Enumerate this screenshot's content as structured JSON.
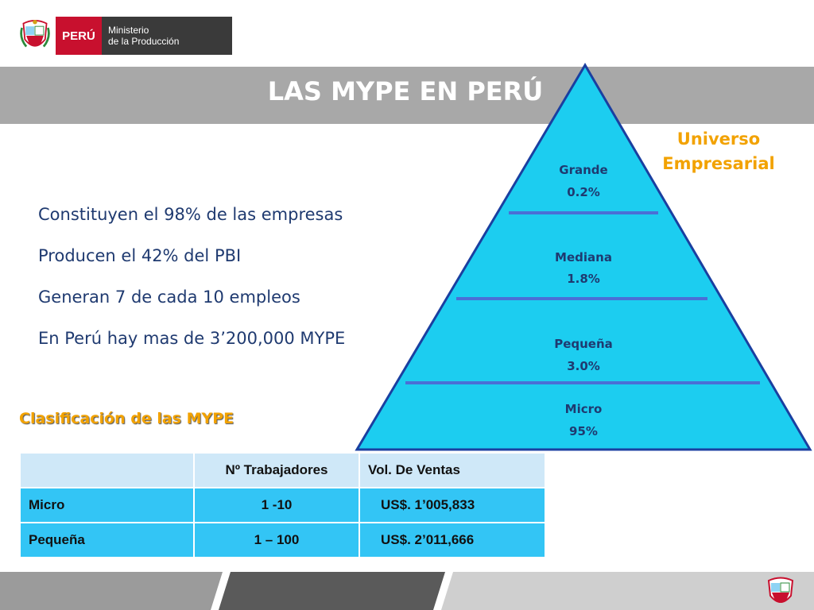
{
  "header": {
    "logo_country": "PERÚ",
    "logo_ministry_line1": "Ministerio",
    "logo_ministry_line2": "de la Producción",
    "title": "LAS MYPE EN  PERÚ"
  },
  "pyramid": {
    "side_label_line1": "Universo",
    "side_label_line2": "Empresarial",
    "tiers": [
      {
        "name": "Grande",
        "pct": "0.2%"
      },
      {
        "name": "Mediana",
        "pct": "1.8%"
      },
      {
        "name": "Pequeña",
        "pct": "3.0%"
      },
      {
        "name": "Micro",
        "pct": "95%"
      }
    ],
    "fill_color": "#1ccdf0",
    "divider_color": "#4a6fd6"
  },
  "facts": [
    "Constituyen el 98% de las empresas",
    "Producen el 42% del PBI",
    "Generan 7 de cada 10 empleos",
    "En Perú hay mas de 3’200,000 MYPE"
  ],
  "classification": {
    "heading": "Clasificación de las MYPE",
    "columns": [
      "",
      "Nº Trabajadores",
      "Vol. De Ventas"
    ],
    "rows": [
      [
        "Micro",
        "1 -10",
        "US$. 1’005,833"
      ],
      [
        "Pequeña",
        "1 – 100",
        "US$. 2’011,666"
      ]
    ]
  },
  "colors": {
    "accent_orange": "#f2a200",
    "text_blue": "#1f3a70",
    "title_band": "#a8a8a8",
    "brand_red": "#c8102e"
  }
}
